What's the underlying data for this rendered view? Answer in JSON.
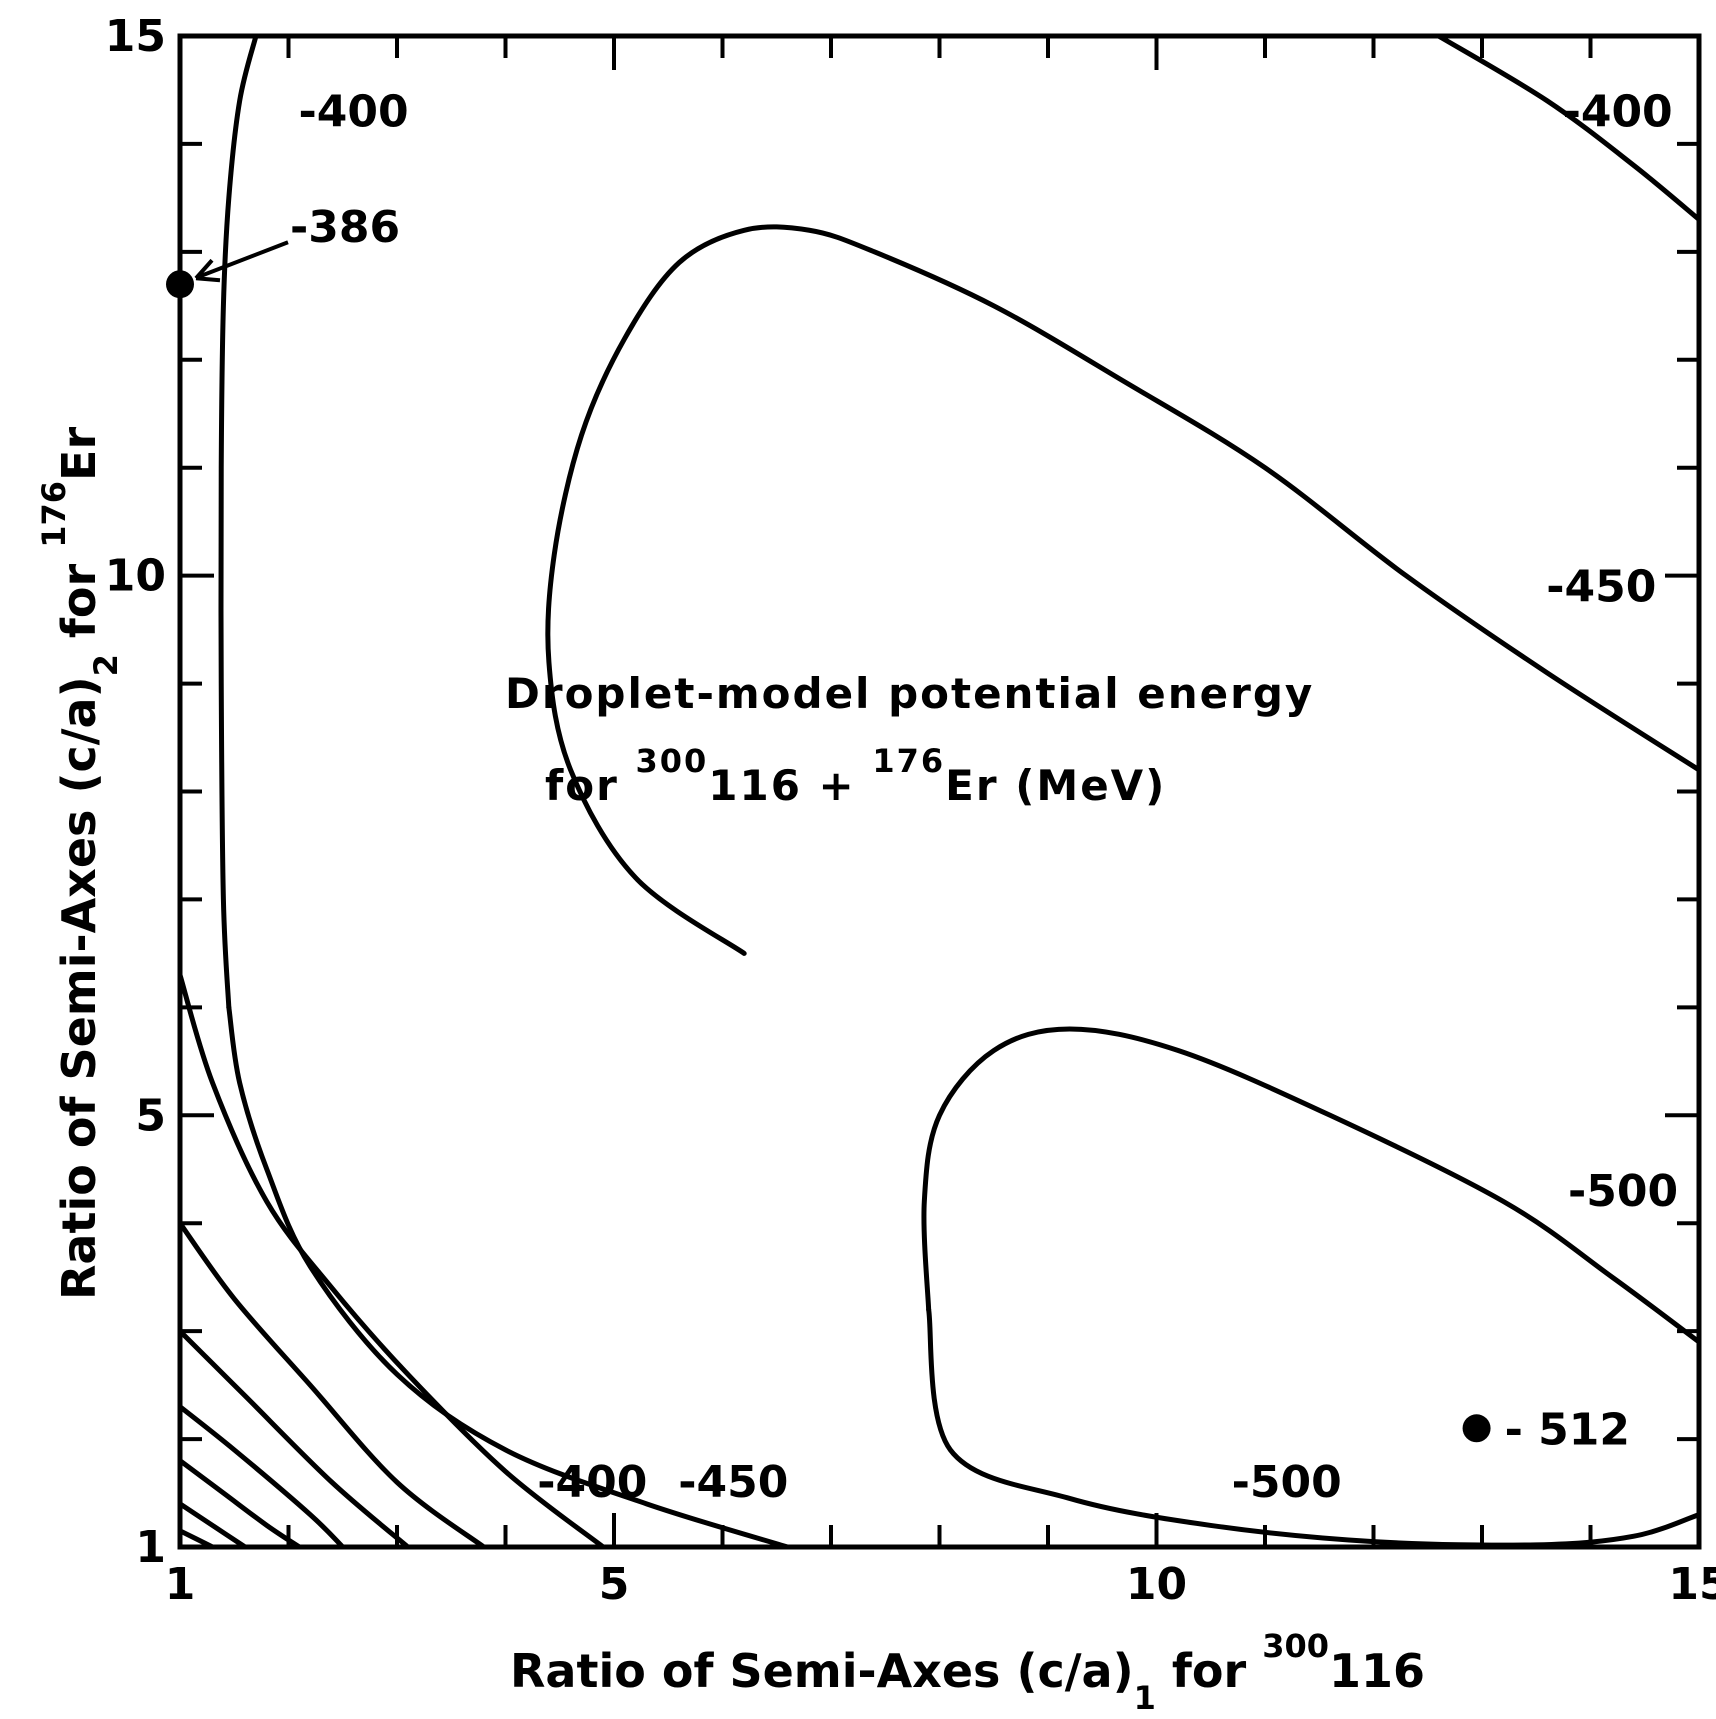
{
  "chart_data": {
    "type": "contour",
    "title": {
      "line1": "Droplet-model potential energy",
      "line2_prefix": "for ",
      "line2_sup1": "300",
      "line2_mid": "116 + ",
      "line2_sup2": "176",
      "line2_suffix": "Er (MeV)"
    },
    "xlabel": {
      "text": "Ratio of Semi-Axes (c/a)",
      "subscript": "1",
      "for": " for ",
      "sup": "300",
      "nucleus": "116"
    },
    "ylabel": {
      "text": "Ratio of Semi-Axes (c/a)",
      "subscript": "2",
      "for": " for ",
      "sup": "176",
      "nucleus": "Er"
    },
    "xlim": [
      1,
      15
    ],
    "ylim": [
      1,
      15
    ],
    "x_tick_labels": [
      {
        "value": 1,
        "label": "1"
      },
      {
        "value": 5,
        "label": "5"
      },
      {
        "value": 10,
        "label": "10"
      },
      {
        "value": 15,
        "label": "15"
      }
    ],
    "y_tick_labels": [
      {
        "value": 1,
        "label": "1"
      },
      {
        "value": 5,
        "label": "5"
      },
      {
        "value": 10,
        "label": "10"
      },
      {
        "value": 15,
        "label": "15"
      }
    ],
    "minor_ticks": [
      2,
      3,
      4,
      6,
      7,
      8,
      9,
      11,
      12,
      13,
      14
    ],
    "contours": [
      {
        "level": -400,
        "points": [
          [
            1.7,
            15
          ],
          [
            1.55,
            14.4
          ],
          [
            1.45,
            13.5
          ],
          [
            1.4,
            12.5
          ],
          [
            1.38,
            11
          ],
          [
            1.38,
            9
          ],
          [
            1.4,
            7
          ],
          [
            1.45,
            6
          ]
        ]
      },
      {
        "level": -400,
        "points": [
          [
            12.6,
            15
          ],
          [
            13.6,
            14.4
          ],
          [
            14.4,
            13.8
          ],
          [
            15,
            13.3
          ]
        ]
      },
      {
        "level": -450,
        "points": [
          [
            6.2,
            6.5
          ],
          [
            5.2,
            7.2
          ],
          [
            4.6,
            8.2
          ],
          [
            4.4,
            9.2
          ],
          [
            4.45,
            10.2
          ],
          [
            4.7,
            11.3
          ],
          [
            5.1,
            12.2
          ],
          [
            5.6,
            12.9
          ],
          [
            6.2,
            13.2
          ],
          [
            6.8,
            13.2
          ],
          [
            7.4,
            13
          ],
          [
            8.5,
            12.5
          ],
          [
            9.7,
            11.8
          ],
          [
            11,
            11
          ],
          [
            12.3,
            10
          ],
          [
            13.6,
            9.1
          ],
          [
            15,
            8.2
          ]
        ]
      },
      {
        "level": -500,
        "points": [
          [
            7.9,
            3.2
          ],
          [
            8.1,
            1.9
          ],
          [
            9.2,
            1.45
          ],
          [
            10.5,
            1.2
          ],
          [
            12,
            1.05
          ],
          [
            13.5,
            1.02
          ],
          [
            14.4,
            1.1
          ],
          [
            15,
            1.3
          ]
        ]
      },
      {
        "level": -500,
        "points": [
          [
            15,
            2.9
          ],
          [
            14.2,
            3.5
          ],
          [
            13.2,
            4.2
          ],
          [
            11.6,
            5.0
          ],
          [
            10.2,
            5.6
          ],
          [
            9.2,
            5.8
          ],
          [
            8.5,
            5.6
          ],
          [
            8.0,
            5.0
          ],
          [
            7.86,
            4.2
          ],
          [
            7.9,
            3.2
          ]
        ]
      },
      {
        "level": -450,
        "points": [
          [
            1.45,
            6
          ],
          [
            1.55,
            5.3
          ],
          [
            1.8,
            4.5
          ],
          [
            2.2,
            3.6
          ],
          [
            3.0,
            2.6
          ],
          [
            4.0,
            1.9
          ],
          [
            5.3,
            1.4
          ],
          [
            6.6,
            1.0
          ]
        ]
      },
      {
        "level": -400,
        "points": [
          [
            1,
            6.3
          ],
          [
            1.3,
            5.3
          ],
          [
            1.8,
            4.2
          ],
          [
            2.4,
            3.4
          ],
          [
            3.1,
            2.6
          ],
          [
            4.0,
            1.7
          ],
          [
            4.9,
            1
          ]
        ]
      },
      {
        "level": null,
        "points": [
          [
            1,
            4
          ],
          [
            1.5,
            3.3
          ],
          [
            2.2,
            2.5
          ],
          [
            3.0,
            1.6
          ],
          [
            3.8,
            1
          ]
        ]
      },
      {
        "level": null,
        "points": [
          [
            1,
            3
          ],
          [
            1.6,
            2.4
          ],
          [
            2.4,
            1.6
          ],
          [
            3.1,
            1
          ]
        ]
      },
      {
        "level": null,
        "points": [
          [
            1,
            2.3
          ],
          [
            1.5,
            1.9
          ],
          [
            2.2,
            1.3
          ],
          [
            2.5,
            1
          ]
        ]
      },
      {
        "level": null,
        "points": [
          [
            1,
            1.8
          ],
          [
            1.4,
            1.5
          ],
          [
            1.8,
            1.2
          ],
          [
            2.1,
            1
          ]
        ]
      },
      {
        "level": null,
        "points": [
          [
            1,
            1.4
          ],
          [
            1.3,
            1.2
          ],
          [
            1.6,
            1
          ]
        ]
      },
      {
        "level": null,
        "points": [
          [
            1,
            1.15
          ],
          [
            1.3,
            1
          ]
        ]
      }
    ],
    "contour_labels": [
      {
        "text": "-400",
        "x": 2.6,
        "y": 14.3
      },
      {
        "text": "-400",
        "x": 14.25,
        "y": 14.3
      },
      {
        "text": "-450",
        "x": 14.1,
        "y": 9.9
      },
      {
        "text": "-500",
        "x": 14.3,
        "y": 4.3
      },
      {
        "text": "-500",
        "x": 11.2,
        "y": 1.6
      },
      {
        "text": "-400",
        "x": 4.8,
        "y": 1.6
      },
      {
        "text": "-450",
        "x": 6.1,
        "y": 1.6
      }
    ],
    "points": [
      {
        "label": "-386",
        "x": 1,
        "y": 12.7
      },
      {
        "label": "- 512",
        "x": 12.95,
        "y": 2.1
      }
    ]
  }
}
